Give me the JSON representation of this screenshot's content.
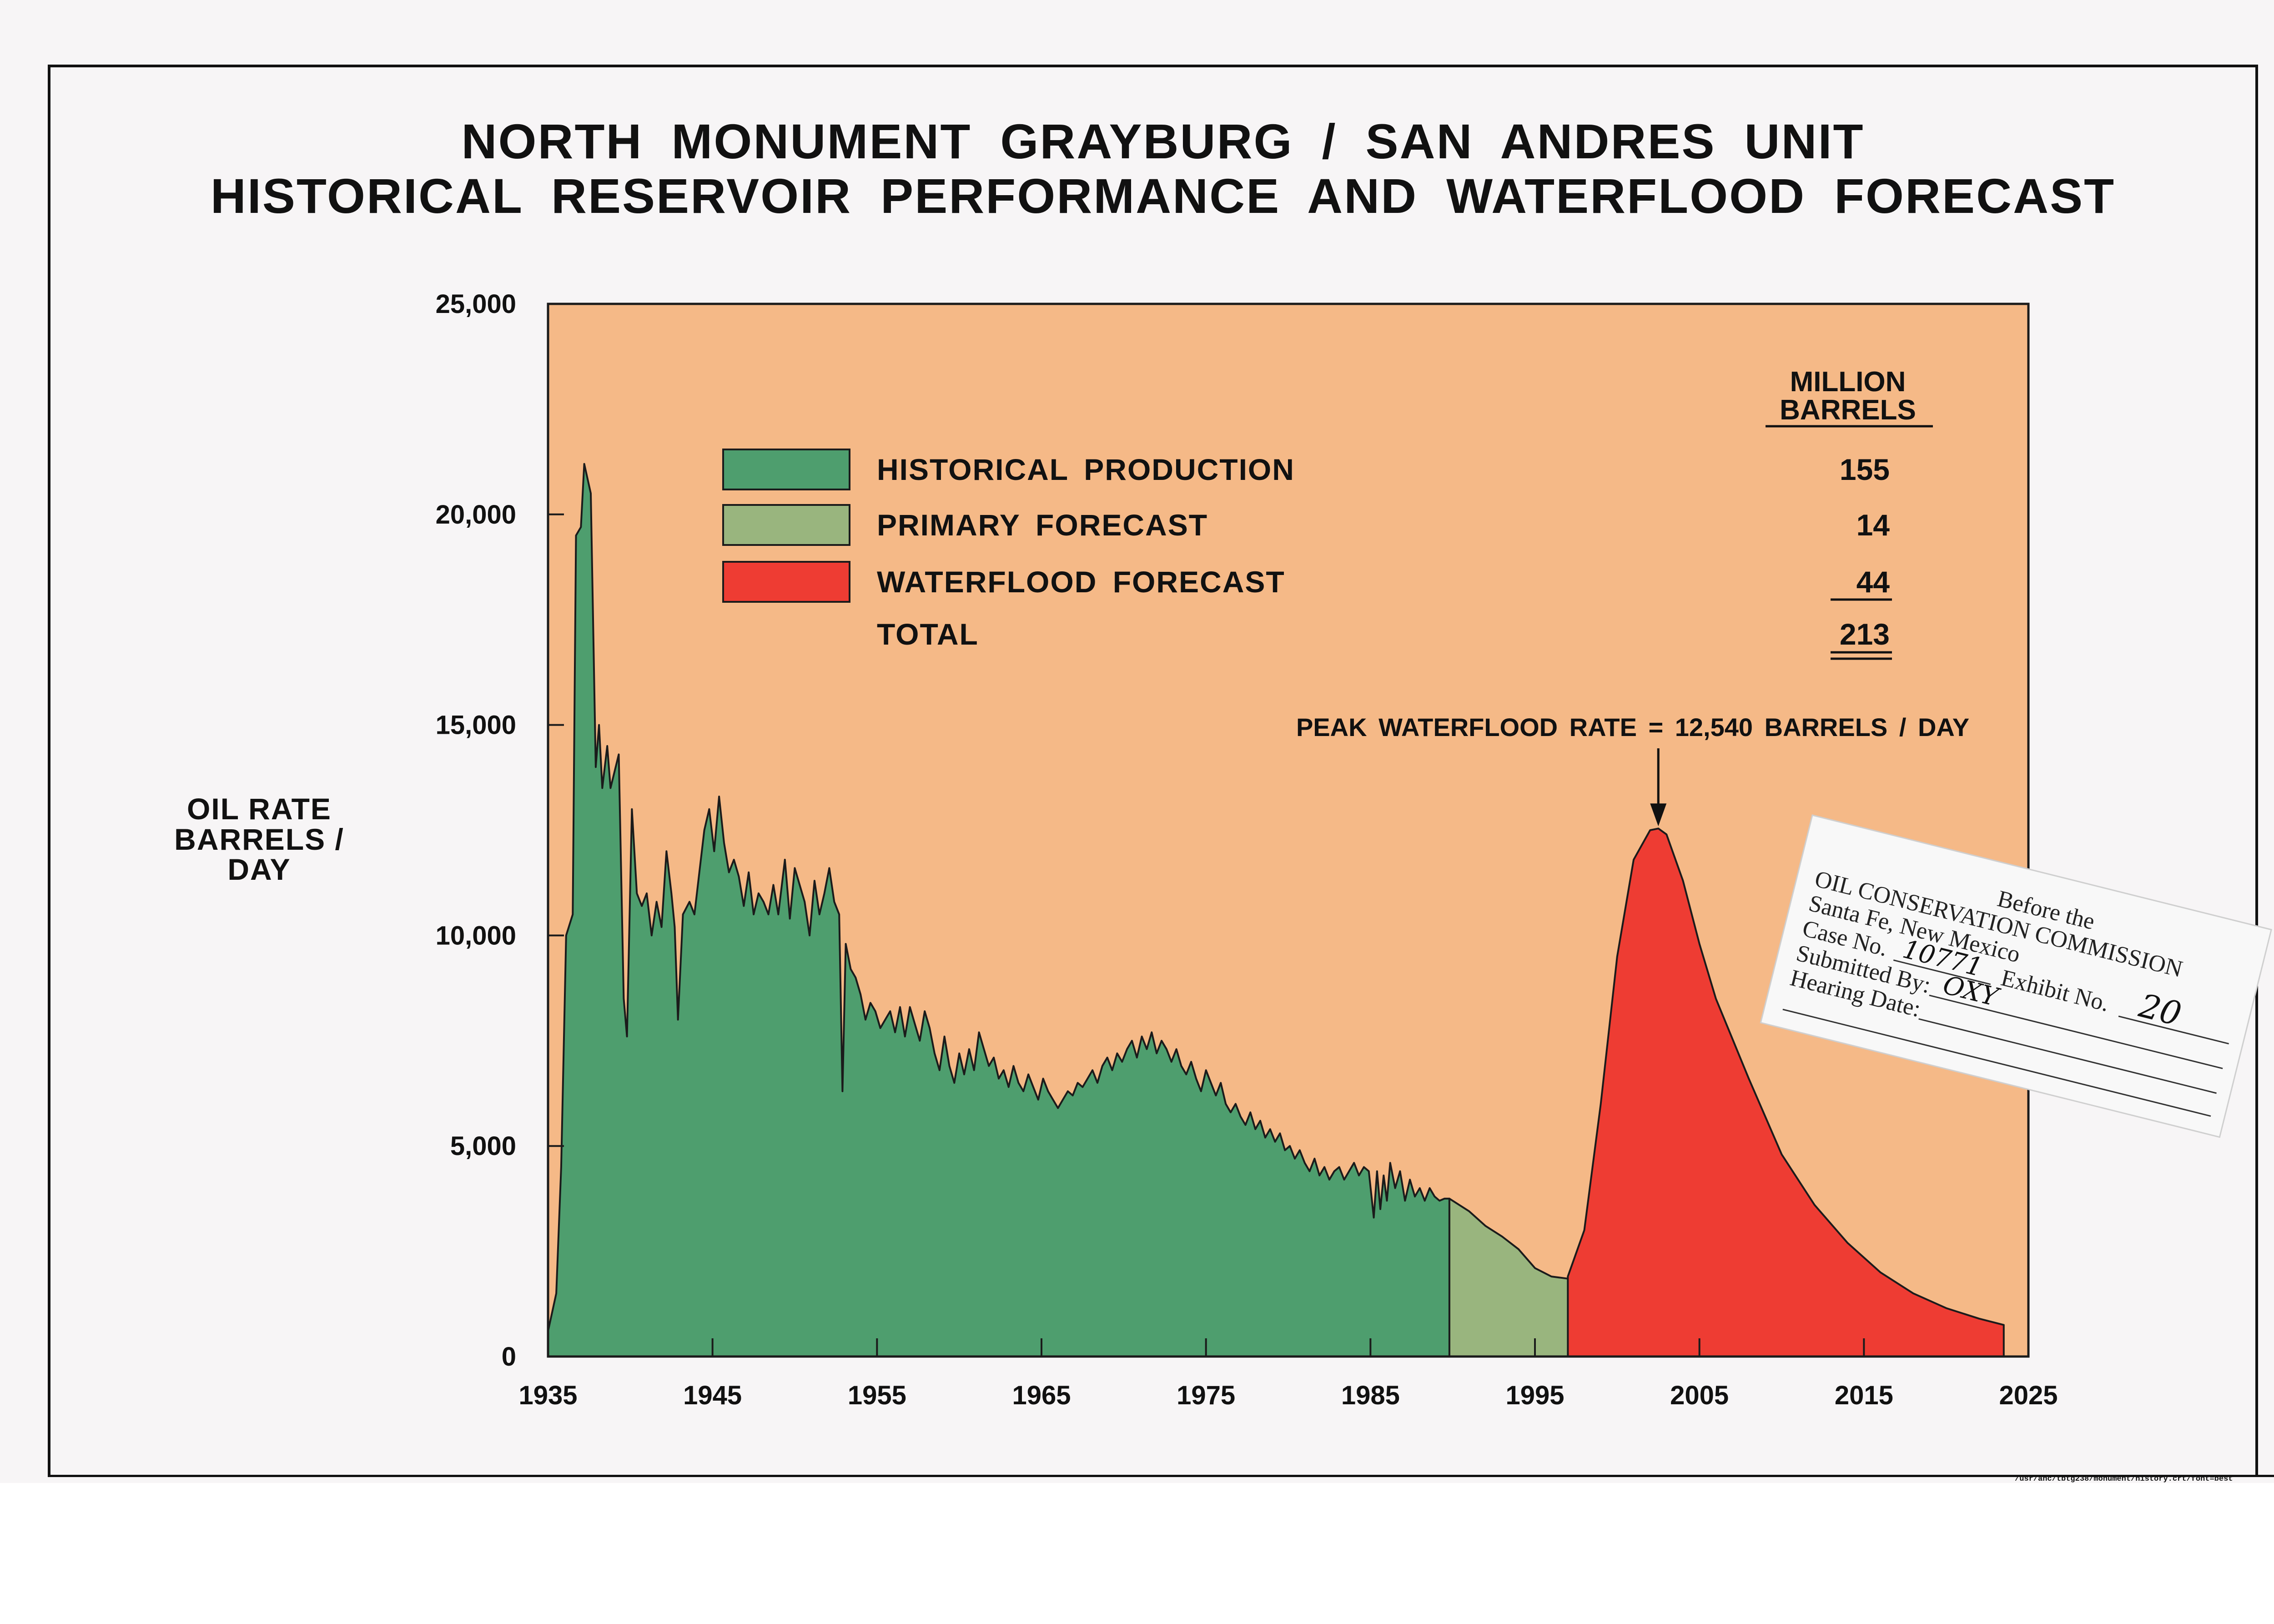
{
  "title_line1": "NORTH MONUMENT GRAYBURG / SAN ANDRES UNIT",
  "title_line2": "HISTORICAL RESERVOIR PERFORMANCE AND WATERFLOOD FORECAST",
  "ylabel_line1": "OIL RATE",
  "ylabel_line2": "BARRELS / DAY",
  "file_path": "/usr/ahc/tbtg238/monument/history.crt/font=best",
  "colors": {
    "plot_background": "#f5b987",
    "historical": "#4e9e6e",
    "primary": "#99b57e",
    "waterflood": "#ee3c33",
    "outline": "#1b1b1b"
  },
  "chart_data": {
    "type": "area",
    "xlabel": "",
    "ylabel": "OIL RATE BARRELS / DAY",
    "xlim": [
      1935,
      2025
    ],
    "ylim": [
      0,
      25000
    ],
    "x_ticks": [
      1935,
      1945,
      1955,
      1965,
      1975,
      1985,
      1995,
      2005,
      2015,
      2025
    ],
    "y_ticks": [
      0,
      5000,
      10000,
      15000,
      20000,
      25000
    ],
    "y_tick_labels": [
      "0",
      "5,000",
      "10,000",
      "15,000",
      "20,000",
      "25,000"
    ],
    "grid": false,
    "legend_position": "top-left",
    "legend_header": [
      "MILLION",
      "BARRELS"
    ],
    "legend": [
      {
        "label": "HISTORICAL PRODUCTION",
        "value": "155",
        "color": "#4e9e6e"
      },
      {
        "label": "PRIMARY FORECAST",
        "value": "14",
        "color": "#99b57e"
      },
      {
        "label": "WATERFLOOD FORECAST",
        "value": "44",
        "color": "#ee3c33"
      },
      {
        "label": "TOTAL",
        "value": "213",
        "color": ""
      }
    ],
    "annotation": {
      "text": "PEAK WATERFLOOD RATE = 12,540 BARRELS / DAY",
      "x": 2002.5,
      "y": 12540
    },
    "series": [
      {
        "name": "HISTORICAL PRODUCTION",
        "points": [
          [
            1935,
            600
          ],
          [
            1935.5,
            1500
          ],
          [
            1935.8,
            4500
          ],
          [
            1936.1,
            10000
          ],
          [
            1936.5,
            10500
          ],
          [
            1936.7,
            19500
          ],
          [
            1937.0,
            19700
          ],
          [
            1937.2,
            21200
          ],
          [
            1937.6,
            20500
          ],
          [
            1937.9,
            14000
          ],
          [
            1938.1,
            15000
          ],
          [
            1938.3,
            13500
          ],
          [
            1938.6,
            14500
          ],
          [
            1938.8,
            13500
          ],
          [
            1939.3,
            14300
          ],
          [
            1939.6,
            8500
          ],
          [
            1939.8,
            7600
          ],
          [
            1940.1,
            13000
          ],
          [
            1940.4,
            11000
          ],
          [
            1940.7,
            10700
          ],
          [
            1941.0,
            11000
          ],
          [
            1941.3,
            10000
          ],
          [
            1941.6,
            10800
          ],
          [
            1941.9,
            10200
          ],
          [
            1942.2,
            12000
          ],
          [
            1942.5,
            11000
          ],
          [
            1942.7,
            10200
          ],
          [
            1942.9,
            8000
          ],
          [
            1943.2,
            10500
          ],
          [
            1943.6,
            10800
          ],
          [
            1943.9,
            10500
          ],
          [
            1944.2,
            11500
          ],
          [
            1944.5,
            12500
          ],
          [
            1944.8,
            13000
          ],
          [
            1945.1,
            12000
          ],
          [
            1945.4,
            13300
          ],
          [
            1945.7,
            12200
          ],
          [
            1946.0,
            11500
          ],
          [
            1946.3,
            11800
          ],
          [
            1946.6,
            11400
          ],
          [
            1946.9,
            10700
          ],
          [
            1947.2,
            11500
          ],
          [
            1947.5,
            10500
          ],
          [
            1947.8,
            11000
          ],
          [
            1948.1,
            10800
          ],
          [
            1948.4,
            10500
          ],
          [
            1948.7,
            11200
          ],
          [
            1949.0,
            10500
          ],
          [
            1949.4,
            11800
          ],
          [
            1949.7,
            10400
          ],
          [
            1950.0,
            11600
          ],
          [
            1950.3,
            11200
          ],
          [
            1950.6,
            10800
          ],
          [
            1950.9,
            10000
          ],
          [
            1951.2,
            11300
          ],
          [
            1951.5,
            10500
          ],
          [
            1951.8,
            11000
          ],
          [
            1952.1,
            11600
          ],
          [
            1952.4,
            10800
          ],
          [
            1952.7,
            10500
          ],
          [
            1952.9,
            6300
          ],
          [
            1953.1,
            9800
          ],
          [
            1953.4,
            9200
          ],
          [
            1953.7,
            9000
          ],
          [
            1954.0,
            8600
          ],
          [
            1954.3,
            8000
          ],
          [
            1954.6,
            8400
          ],
          [
            1954.9,
            8200
          ],
          [
            1955.2,
            7800
          ],
          [
            1955.5,
            8000
          ],
          [
            1955.8,
            8200
          ],
          [
            1956.1,
            7700
          ],
          [
            1956.4,
            8300
          ],
          [
            1956.7,
            7600
          ],
          [
            1957.0,
            8300
          ],
          [
            1957.3,
            7900
          ],
          [
            1957.6,
            7500
          ],
          [
            1957.9,
            8200
          ],
          [
            1958.2,
            7800
          ],
          [
            1958.5,
            7200
          ],
          [
            1958.8,
            6800
          ],
          [
            1959.1,
            7600
          ],
          [
            1959.4,
            6900
          ],
          [
            1959.7,
            6500
          ],
          [
            1960.0,
            7200
          ],
          [
            1960.3,
            6700
          ],
          [
            1960.6,
            7300
          ],
          [
            1960.9,
            6800
          ],
          [
            1961.2,
            7700
          ],
          [
            1961.5,
            7300
          ],
          [
            1961.8,
            6900
          ],
          [
            1962.1,
            7100
          ],
          [
            1962.4,
            6600
          ],
          [
            1962.7,
            6800
          ],
          [
            1963.0,
            6400
          ],
          [
            1963.3,
            6900
          ],
          [
            1963.6,
            6500
          ],
          [
            1963.9,
            6300
          ],
          [
            1964.2,
            6700
          ],
          [
            1964.5,
            6400
          ],
          [
            1964.8,
            6100
          ],
          [
            1965.1,
            6600
          ],
          [
            1965.4,
            6300
          ],
          [
            1965.7,
            6100
          ],
          [
            1966.0,
            5900
          ],
          [
            1966.3,
            6100
          ],
          [
            1966.6,
            6300
          ],
          [
            1966.9,
            6200
          ],
          [
            1967.2,
            6500
          ],
          [
            1967.5,
            6400
          ],
          [
            1967.8,
            6600
          ],
          [
            1968.1,
            6800
          ],
          [
            1968.4,
            6500
          ],
          [
            1968.7,
            6900
          ],
          [
            1969.0,
            7100
          ],
          [
            1969.3,
            6800
          ],
          [
            1969.6,
            7200
          ],
          [
            1969.9,
            7000
          ],
          [
            1970.2,
            7300
          ],
          [
            1970.5,
            7500
          ],
          [
            1970.8,
            7100
          ],
          [
            1971.1,
            7600
          ],
          [
            1971.4,
            7300
          ],
          [
            1971.7,
            7700
          ],
          [
            1972.0,
            7200
          ],
          [
            1972.3,
            7500
          ],
          [
            1972.6,
            7300
          ],
          [
            1972.9,
            7000
          ],
          [
            1973.2,
            7300
          ],
          [
            1973.5,
            6900
          ],
          [
            1973.8,
            6700
          ],
          [
            1974.1,
            7000
          ],
          [
            1974.4,
            6600
          ],
          [
            1974.7,
            6300
          ],
          [
            1975.0,
            6800
          ],
          [
            1975.3,
            6500
          ],
          [
            1975.6,
            6200
          ],
          [
            1975.9,
            6500
          ],
          [
            1976.2,
            6000
          ],
          [
            1976.5,
            5800
          ],
          [
            1976.8,
            6000
          ],
          [
            1977.1,
            5700
          ],
          [
            1977.4,
            5500
          ],
          [
            1977.7,
            5800
          ],
          [
            1978.0,
            5400
          ],
          [
            1978.3,
            5600
          ],
          [
            1978.6,
            5200
          ],
          [
            1978.9,
            5400
          ],
          [
            1979.2,
            5100
          ],
          [
            1979.5,
            5300
          ],
          [
            1979.8,
            4900
          ],
          [
            1980.1,
            5000
          ],
          [
            1980.4,
            4700
          ],
          [
            1980.7,
            4900
          ],
          [
            1981.0,
            4600
          ],
          [
            1981.3,
            4400
          ],
          [
            1981.6,
            4700
          ],
          [
            1981.9,
            4300
          ],
          [
            1982.2,
            4500
          ],
          [
            1982.5,
            4200
          ],
          [
            1982.8,
            4400
          ],
          [
            1983.1,
            4500
          ],
          [
            1983.4,
            4200
          ],
          [
            1983.7,
            4400
          ],
          [
            1984.0,
            4600
          ],
          [
            1984.3,
            4300
          ],
          [
            1984.6,
            4500
          ],
          [
            1984.9,
            4400
          ],
          [
            1985.2,
            3300
          ],
          [
            1985.4,
            4400
          ],
          [
            1985.6,
            3500
          ],
          [
            1985.8,
            4300
          ],
          [
            1986.0,
            3700
          ],
          [
            1986.2,
            4600
          ],
          [
            1986.5,
            4000
          ],
          [
            1986.8,
            4400
          ],
          [
            1987.1,
            3700
          ],
          [
            1987.4,
            4200
          ],
          [
            1987.7,
            3800
          ],
          [
            1988.0,
            4000
          ],
          [
            1988.3,
            3700
          ],
          [
            1988.6,
            4000
          ],
          [
            1988.9,
            3800
          ],
          [
            1989.2,
            3700
          ],
          [
            1989.5,
            3750
          ],
          [
            1989.8,
            3750
          ]
        ]
      },
      {
        "name": "PRIMARY FORECAST",
        "points": [
          [
            1989.8,
            3750
          ],
          [
            1991,
            3450
          ],
          [
            1992,
            3100
          ],
          [
            1993,
            2850
          ],
          [
            1994,
            2550
          ],
          [
            1995,
            2100
          ],
          [
            1996,
            1900
          ],
          [
            1997,
            1850
          ],
          [
            1998,
            1800
          ],
          [
            2000,
            1600
          ],
          [
            2002,
            1400
          ],
          [
            2004,
            1220
          ],
          [
            2006,
            1060
          ],
          [
            2008,
            920
          ],
          [
            2010,
            800
          ],
          [
            2012,
            700
          ],
          [
            2014,
            620
          ],
          [
            2016,
            560
          ],
          [
            2018,
            500
          ],
          [
            2020,
            450
          ],
          [
            2021.5,
            420
          ]
        ]
      },
      {
        "name": "WATERFLOOD FORECAST",
        "points": [
          [
            1997,
            1900
          ],
          [
            1998,
            3000
          ],
          [
            1999,
            6000
          ],
          [
            2000,
            9500
          ],
          [
            2001,
            11800
          ],
          [
            2002,
            12500
          ],
          [
            2002.5,
            12540
          ],
          [
            2003,
            12400
          ],
          [
            2004,
            11300
          ],
          [
            2005,
            9800
          ],
          [
            2006,
            8500
          ],
          [
            2008,
            6600
          ],
          [
            2010,
            4800
          ],
          [
            2012,
            3600
          ],
          [
            2014,
            2700
          ],
          [
            2016,
            2000
          ],
          [
            2018,
            1500
          ],
          [
            2020,
            1150
          ],
          [
            2022,
            900
          ],
          [
            2023.5,
            750
          ],
          [
            2023.5,
            0
          ]
        ]
      }
    ]
  },
  "stamp": {
    "line1": "Before the",
    "line2": "OIL CONSERVATION COMMISSION",
    "line3": "Santa Fe, New Mexico",
    "case_label": "Case No.",
    "case_value": "10771",
    "exhibit_label": "Exhibit No.",
    "exhibit_value": "20",
    "submitted_label": "Submitted By:",
    "submitted_value": "OXY",
    "hearing_label": "Hearing Date:"
  }
}
